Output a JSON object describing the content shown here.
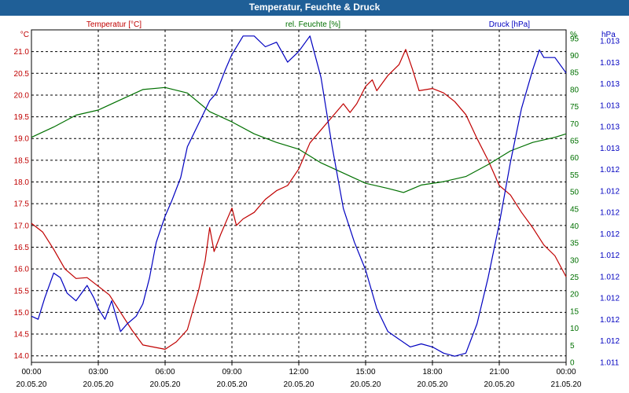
{
  "window": {
    "title": "Temperatur, Feuchte & Druck"
  },
  "colors": {
    "title_bg": "#1f5f97",
    "temperature": "#c00000",
    "humidity": "#007000",
    "pressure": "#0000c0"
  },
  "chart_data": {
    "type": "line",
    "title": "Temperatur, Feuchte & Druck",
    "x_ticks": [
      {
        "time": "00:00",
        "date": "20.05.20"
      },
      {
        "time": "03:00",
        "date": "20.05.20"
      },
      {
        "time": "06:00",
        "date": "20.05.20"
      },
      {
        "time": "09:00",
        "date": "20.05.20"
      },
      {
        "time": "12:00",
        "date": "20.05.20"
      },
      {
        "time": "15:00",
        "date": "20.05.20"
      },
      {
        "time": "18:00",
        "date": "20.05.20"
      },
      {
        "time": "21:00",
        "date": "20.05.20"
      },
      {
        "time": "00:00",
        "date": "21.05.20"
      }
    ],
    "xlim_hours": [
      0,
      24
    ],
    "legend": [
      "Temperatur [°C]",
      "rel. Feuchte [%]",
      "Druck [hPa]"
    ],
    "axes": {
      "temperature": {
        "unit": "°C",
        "ylim": [
          13.85,
          21.5
        ],
        "ticks": [
          "14.0",
          "14.5",
          "15.0",
          "15.5",
          "16.0",
          "16.5",
          "17.0",
          "17.5",
          "18.0",
          "18.5",
          "19.0",
          "19.5",
          "20.0",
          "20.5",
          "21.0"
        ]
      },
      "humidity": {
        "unit": "%",
        "ylim": [
          0,
          97.5
        ],
        "ticks": [
          "0",
          "5",
          "10",
          "15",
          "20",
          "25",
          "30",
          "35",
          "40",
          "45",
          "50",
          "55",
          "60",
          "65",
          "70",
          "75",
          "80",
          "85",
          "90",
          "95"
        ]
      },
      "pressure": {
        "unit": "hPa",
        "ylim": [
          1011.0,
          1013.16
        ],
        "ticks": [
          "1.011",
          "1.012",
          "1.012",
          "1.012",
          "1.012",
          "1.012",
          "1.012",
          "1.012",
          "1.012",
          "1.012",
          "1.013",
          "1.013",
          "1.013",
          "1.013",
          "1.013",
          "1.013"
        ]
      }
    },
    "series": [
      {
        "name": "Temperatur [°C]",
        "axis": "temperature",
        "points": [
          [
            0,
            17.05
          ],
          [
            0.5,
            16.85
          ],
          [
            1.0,
            16.45
          ],
          [
            1.5,
            16.0
          ],
          [
            2.0,
            15.78
          ],
          [
            2.5,
            15.8
          ],
          [
            3.0,
            15.6
          ],
          [
            3.5,
            15.4
          ],
          [
            4.0,
            15.0
          ],
          [
            4.5,
            14.6
          ],
          [
            5.0,
            14.25
          ],
          [
            5.5,
            14.2
          ],
          [
            6.0,
            14.15
          ],
          [
            6.5,
            14.32
          ],
          [
            7.0,
            14.6
          ],
          [
            7.5,
            15.5
          ],
          [
            7.8,
            16.2
          ],
          [
            8.0,
            16.95
          ],
          [
            8.2,
            16.4
          ],
          [
            8.5,
            16.8
          ],
          [
            9.0,
            17.4
          ],
          [
            9.2,
            17.0
          ],
          [
            9.5,
            17.15
          ],
          [
            10.0,
            17.3
          ],
          [
            10.5,
            17.6
          ],
          [
            11.0,
            17.8
          ],
          [
            11.5,
            17.92
          ],
          [
            12.0,
            18.3
          ],
          [
            12.5,
            18.9
          ],
          [
            13.0,
            19.2
          ],
          [
            13.5,
            19.5
          ],
          [
            14.0,
            19.8
          ],
          [
            14.3,
            19.6
          ],
          [
            14.6,
            19.8
          ],
          [
            15.0,
            20.2
          ],
          [
            15.3,
            20.35
          ],
          [
            15.5,
            20.1
          ],
          [
            16.0,
            20.45
          ],
          [
            16.5,
            20.7
          ],
          [
            16.8,
            21.05
          ],
          [
            17.1,
            20.6
          ],
          [
            17.4,
            20.1
          ],
          [
            18.0,
            20.15
          ],
          [
            18.5,
            20.05
          ],
          [
            19.0,
            19.85
          ],
          [
            19.5,
            19.55
          ],
          [
            20.0,
            19.0
          ],
          [
            20.5,
            18.5
          ],
          [
            21.0,
            17.92
          ],
          [
            21.5,
            17.7
          ],
          [
            22.0,
            17.3
          ],
          [
            22.5,
            16.95
          ],
          [
            23.0,
            16.55
          ],
          [
            23.5,
            16.3
          ],
          [
            24.0,
            15.82
          ]
        ]
      },
      {
        "name": "rel. Feuchte [%]",
        "axis": "humidity",
        "points": [
          [
            0,
            66.0
          ],
          [
            1.0,
            69.0
          ],
          [
            2.0,
            72.5
          ],
          [
            3.0,
            74.0
          ],
          [
            4.0,
            77.0
          ],
          [
            5.0,
            80.0
          ],
          [
            6.0,
            80.6
          ],
          [
            7.0,
            79.0
          ],
          [
            8.0,
            73.5
          ],
          [
            9.0,
            70.5
          ],
          [
            10.0,
            67.0
          ],
          [
            11.0,
            64.5
          ],
          [
            12.0,
            62.5
          ],
          [
            13.0,
            58.5
          ],
          [
            14.0,
            55.5
          ],
          [
            15.0,
            52.5
          ],
          [
            16.0,
            51.0
          ],
          [
            16.7,
            49.8
          ],
          [
            17.5,
            52.0
          ],
          [
            18.5,
            53.0
          ],
          [
            19.5,
            54.5
          ],
          [
            20.5,
            58.0
          ],
          [
            21.5,
            62.0
          ],
          [
            22.5,
            64.5
          ],
          [
            23.5,
            66.0
          ],
          [
            24.0,
            67.0
          ]
        ]
      },
      {
        "name": "Druck [hPa]",
        "axis": "pressure",
        "points": [
          [
            0,
            1011.3
          ],
          [
            0.3,
            1011.28
          ],
          [
            0.6,
            1011.42
          ],
          [
            1.0,
            1011.58
          ],
          [
            1.3,
            1011.55
          ],
          [
            1.6,
            1011.45
          ],
          [
            2.0,
            1011.4
          ],
          [
            2.5,
            1011.5
          ],
          [
            2.8,
            1011.42
          ],
          [
            3.0,
            1011.35
          ],
          [
            3.3,
            1011.28
          ],
          [
            3.6,
            1011.4
          ],
          [
            4.0,
            1011.2
          ],
          [
            4.3,
            1011.25
          ],
          [
            4.7,
            1011.3
          ],
          [
            5.0,
            1011.38
          ],
          [
            5.3,
            1011.55
          ],
          [
            5.6,
            1011.78
          ],
          [
            6.0,
            1011.95
          ],
          [
            6.3,
            1012.05
          ],
          [
            6.7,
            1012.2
          ],
          [
            7.0,
            1012.4
          ],
          [
            7.5,
            1012.55
          ],
          [
            8.0,
            1012.7
          ],
          [
            8.3,
            1012.75
          ],
          [
            8.7,
            1012.9
          ],
          [
            9.0,
            1013.0
          ],
          [
            9.5,
            1013.12
          ],
          [
            10.0,
            1013.12
          ],
          [
            10.5,
            1013.05
          ],
          [
            11.0,
            1013.08
          ],
          [
            11.5,
            1012.95
          ],
          [
            12.0,
            1013.02
          ],
          [
            12.5,
            1013.12
          ],
          [
            13.0,
            1012.85
          ],
          [
            13.5,
            1012.4
          ],
          [
            14.0,
            1012.0
          ],
          [
            14.5,
            1011.78
          ],
          [
            15.0,
            1011.6
          ],
          [
            15.5,
            1011.35
          ],
          [
            16.0,
            1011.2
          ],
          [
            16.5,
            1011.15
          ],
          [
            17.0,
            1011.1
          ],
          [
            17.5,
            1011.12
          ],
          [
            18.0,
            1011.1
          ],
          [
            18.5,
            1011.06
          ],
          [
            19.0,
            1011.04
          ],
          [
            19.5,
            1011.06
          ],
          [
            20.0,
            1011.25
          ],
          [
            20.5,
            1011.55
          ],
          [
            21.0,
            1011.9
          ],
          [
            21.5,
            1012.3
          ],
          [
            22.0,
            1012.65
          ],
          [
            22.5,
            1012.9
          ],
          [
            22.8,
            1013.03
          ],
          [
            23.0,
            1012.98
          ],
          [
            23.5,
            1012.98
          ],
          [
            24.0,
            1012.88
          ]
        ]
      }
    ]
  }
}
